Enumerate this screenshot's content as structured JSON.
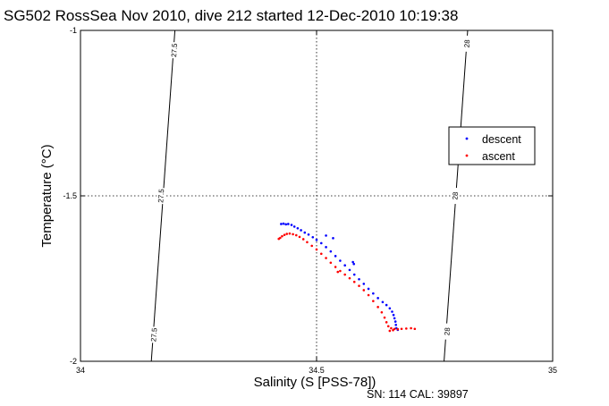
{
  "chart_data": {
    "type": "scatter",
    "title": "SG502 RossSea Nov 2010, dive 212 started 12-Dec-2010 10:19:38",
    "xlabel": "Salinity (S [PSS-78])",
    "ylabel": "Temperature (°C)",
    "xlim": [
      34,
      35
    ],
    "ylim": [
      -2,
      -1
    ],
    "xticks": [
      "34",
      "34.5",
      "35"
    ],
    "yticks": [
      "-1",
      "-1.5",
      "-2"
    ],
    "grid": "dotted",
    "legend_position": "right",
    "contours": [
      {
        "label": "27.5",
        "points": [
          [
            34.15,
            -2.0
          ],
          [
            34.2,
            -1.0
          ]
        ],
        "label_positions": [
          [
            34.198,
            -1.06
          ],
          [
            34.17,
            -1.5
          ],
          [
            34.155,
            -1.92
          ]
        ]
      },
      {
        "label": "28",
        "points": [
          [
            34.77,
            -2.0
          ],
          [
            34.82,
            -1.0
          ]
        ],
        "label_positions": [
          [
            34.818,
            -1.04
          ],
          [
            34.793,
            -1.5
          ],
          [
            34.776,
            -1.91
          ]
        ]
      }
    ],
    "series": [
      {
        "name": "descent",
        "color": "#0000ff",
        "points": [
          [
            34.425,
            -1.585
          ],
          [
            34.43,
            -1.584
          ],
          [
            34.435,
            -1.586
          ],
          [
            34.44,
            -1.585
          ],
          [
            34.447,
            -1.588
          ],
          [
            34.453,
            -1.593
          ],
          [
            34.46,
            -1.598
          ],
          [
            34.467,
            -1.604
          ],
          [
            34.475,
            -1.611
          ],
          [
            34.483,
            -1.617
          ],
          [
            34.492,
            -1.625
          ],
          [
            34.5,
            -1.633
          ],
          [
            34.51,
            -1.643
          ],
          [
            34.52,
            -1.655
          ],
          [
            34.53,
            -1.668
          ],
          [
            34.54,
            -1.682
          ],
          [
            34.55,
            -1.696
          ],
          [
            34.56,
            -1.71
          ],
          [
            34.57,
            -1.724
          ],
          [
            34.58,
            -1.738
          ],
          [
            34.59,
            -1.752
          ],
          [
            34.6,
            -1.766
          ],
          [
            34.61,
            -1.781
          ],
          [
            34.62,
            -1.795
          ],
          [
            34.63,
            -1.809
          ],
          [
            34.64,
            -1.821
          ],
          [
            34.648,
            -1.83
          ],
          [
            34.655,
            -1.84
          ],
          [
            34.66,
            -1.85
          ],
          [
            34.663,
            -1.86
          ],
          [
            34.665,
            -1.87
          ],
          [
            34.667,
            -1.88
          ],
          [
            34.668,
            -1.89
          ],
          [
            34.669,
            -1.9
          ],
          [
            34.672,
            -1.905
          ],
          [
            34.577,
            -1.7
          ],
          [
            34.579,
            -1.706
          ],
          [
            34.535,
            -1.628
          ],
          [
            34.52,
            -1.62
          ]
        ]
      },
      {
        "name": "ascent",
        "color": "#ff0000",
        "points": [
          [
            34.42,
            -1.63
          ],
          [
            34.423,
            -1.627
          ],
          [
            34.427,
            -1.622
          ],
          [
            34.432,
            -1.618
          ],
          [
            34.437,
            -1.615
          ],
          [
            34.443,
            -1.614
          ],
          [
            34.45,
            -1.616
          ],
          [
            34.457,
            -1.619
          ],
          [
            34.464,
            -1.624
          ],
          [
            34.472,
            -1.631
          ],
          [
            34.48,
            -1.64
          ],
          [
            34.49,
            -1.651
          ],
          [
            34.5,
            -1.662
          ],
          [
            34.51,
            -1.675
          ],
          [
            34.52,
            -1.688
          ],
          [
            34.53,
            -1.702
          ],
          [
            34.54,
            -1.715
          ],
          [
            34.55,
            -1.727
          ],
          [
            34.56,
            -1.738
          ],
          [
            34.57,
            -1.749
          ],
          [
            34.58,
            -1.76
          ],
          [
            34.59,
            -1.772
          ],
          [
            34.6,
            -1.785
          ],
          [
            34.61,
            -1.8
          ],
          [
            34.62,
            -1.818
          ],
          [
            34.63,
            -1.836
          ],
          [
            34.638,
            -1.852
          ],
          [
            34.644,
            -1.868
          ],
          [
            34.648,
            -1.882
          ],
          [
            34.652,
            -1.894
          ],
          [
            34.658,
            -1.9
          ],
          [
            34.665,
            -1.902
          ],
          [
            34.672,
            -1.903
          ],
          [
            34.68,
            -1.902
          ],
          [
            34.69,
            -1.901
          ],
          [
            34.7,
            -1.9
          ],
          [
            34.708,
            -1.902
          ],
          [
            34.655,
            -1.908
          ],
          [
            34.662,
            -1.906
          ],
          [
            34.545,
            -1.73
          ]
        ]
      }
    ]
  },
  "footer": "SN: 114  CAL: 39897"
}
